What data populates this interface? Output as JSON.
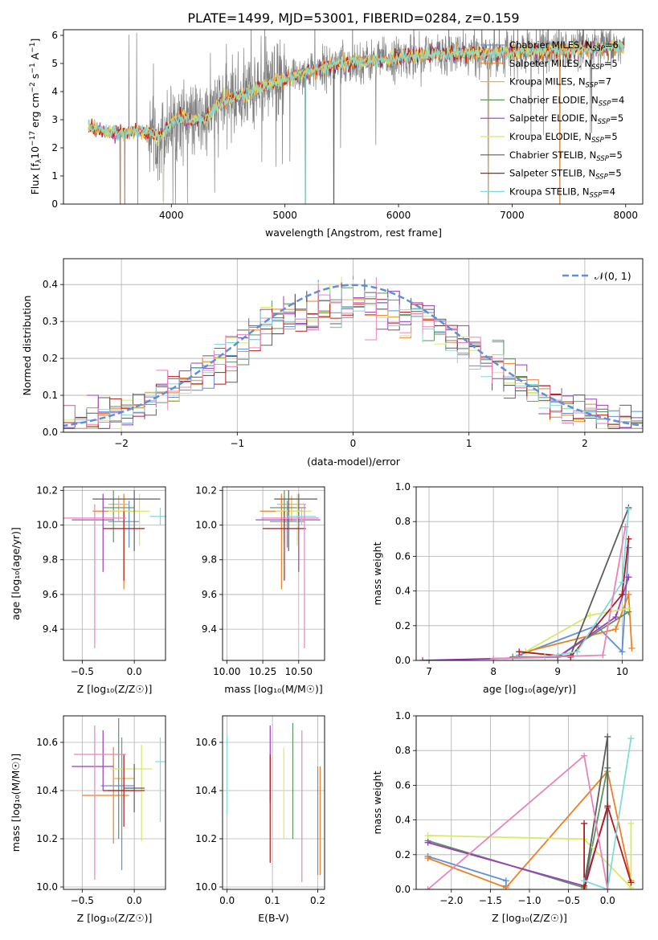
{
  "title": "PLATE=1499, MJD=53001, FIBERID=0284, z=0.159",
  "colors": [
    "#5f8fd6",
    "#ef7f22",
    "#f2b03c",
    "#5c955c",
    "#9a3dbd",
    "#d8e86a",
    "#5d5d5d",
    "#b01c1c",
    "#82dada",
    "#e984b9",
    "#6d4c8f",
    "#c0c0c0"
  ],
  "legend": {
    "spectrum": [
      "Chabrier MILES, N_SSP=6",
      "Salpeter MILES, N_SSP=5",
      "Kroupa MILES, N_SSP=7",
      "Chabrier ELODIE, N_SSP=4",
      "Salpeter ELODIE, N_SSP=5",
      "Kroupa ELODIE, N_SSP=5",
      "Chabrier STELIB, N_SSP=5",
      "Salpeter STELIB, N_SSP=5",
      "Kroupa STELIB, N_SSP=4"
    ],
    "residual": "𝒩(0, 1)"
  },
  "chart_data": [
    {
      "type": "line",
      "panel": "spectrum",
      "xlabel": "wavelength [Angstrom, rest frame]",
      "ylabel": "Flux [f_λ10^-17 erg cm^-2 s^-1 A^-1]",
      "xlim": [
        3050,
        8150
      ],
      "ylim": [
        0,
        6.2
      ],
      "xticks": [
        "4000",
        "5000",
        "6000",
        "7000",
        "8000"
      ],
      "yticks": [
        "0",
        "1",
        "2",
        "3",
        "4",
        "5",
        "6"
      ],
      "x_start": 3270,
      "x_end": 7990,
      "model_curve": {
        "x": [
          3270,
          3400,
          3500,
          3600,
          3700,
          3800,
          3900,
          4000,
          4100,
          4200,
          4300,
          4400,
          4500,
          4700,
          4900,
          5100,
          5300,
          5500,
          5800,
          6000,
          6200,
          6500,
          6800,
          7000,
          7300,
          7600,
          7990
        ],
        "y": [
          2.75,
          2.6,
          2.55,
          2.5,
          2.6,
          2.55,
          2.4,
          2.9,
          3.1,
          2.95,
          3.0,
          3.5,
          3.7,
          4.0,
          4.3,
          4.6,
          4.8,
          5.0,
          5.1,
          5.2,
          5.3,
          5.35,
          5.35,
          5.4,
          5.45,
          5.5,
          5.6
        ]
      },
      "absorption_dips": [
        {
          "x": 3550,
          "y": 0
        },
        {
          "x": 3590,
          "y": 0
        },
        {
          "x": 3930,
          "y": 0.1
        },
        {
          "x": 5180,
          "y": 0
        },
        {
          "x": 5430,
          "y": 0
        },
        {
          "x": 6790,
          "y": 0
        },
        {
          "x": 7420,
          "y": 0
        }
      ]
    },
    {
      "type": "step",
      "panel": "residual",
      "xlabel": "(data-model)/error",
      "ylabel": "Normed distribution",
      "xlim": [
        -2.5,
        2.5
      ],
      "ylim": [
        0,
        0.47
      ],
      "xticks": [
        "−2",
        "−1",
        "0",
        "1",
        "2"
      ],
      "yticks": [
        "0.0",
        "0.1",
        "0.2",
        "0.3",
        "0.4"
      ],
      "bin_width": 0.1,
      "reference": {
        "type": "normal",
        "mean": 0,
        "sigma": 1,
        "style": "dashed"
      }
    },
    {
      "type": "scatter",
      "panel": "age-vs-Z",
      "xlabel": "Z [log10(Z/Z☉)]",
      "ylabel": "age [log10(age/yr)]",
      "xlim": [
        -0.68,
        0.3
      ],
      "ylim": [
        9.22,
        10.22
      ],
      "xticks": [
        "−0.5",
        "0.0"
      ],
      "yticks": [
        "9.4",
        "9.6",
        "9.8",
        "10.0",
        "10.2"
      ],
      "errorbars": [
        {
          "x": -0.05,
          "y": 10.02,
          "xerr": [
            0.2,
            0.1
          ],
          "yerr": [
            0.15,
            0.12
          ],
          "color": "#5f8fd6"
        },
        {
          "x": -0.1,
          "y": 10.08,
          "xerr": [
            0.3,
            0.15
          ],
          "yerr": [
            0.45,
            0.1
          ],
          "color": "#ef7f22"
        },
        {
          "x": -0.15,
          "y": 10.12,
          "xerr": [
            0.1,
            0.1
          ],
          "yerr": [
            0.1,
            0.05
          ],
          "color": "#f2b03c"
        },
        {
          "x": -0.2,
          "y": 10.1,
          "xerr": [
            0.1,
            0.2
          ],
          "yerr": [
            0.2,
            0.1
          ],
          "color": "#5c955c"
        },
        {
          "x": -0.3,
          "y": 10.03,
          "xerr": [
            0.3,
            0.1
          ],
          "yerr": [
            0.3,
            0.15
          ],
          "color": "#9a3dbd"
        },
        {
          "x": 0.05,
          "y": 10.08,
          "xerr": [
            0.3,
            0.1
          ],
          "yerr": [
            0.2,
            0.1
          ],
          "color": "#d8e86a"
        },
        {
          "x": 0.0,
          "y": 10.15,
          "xerr": [
            0.4,
            0.25
          ],
          "yerr": [
            0.3,
            0.05
          ],
          "color": "#5d5d5d"
        },
        {
          "x": -0.1,
          "y": 9.98,
          "xerr": [
            0.2,
            0.2
          ],
          "yerr": [
            0.3,
            0.1
          ],
          "color": "#b01c1c"
        },
        {
          "x": 0.25,
          "y": 10.05,
          "xerr": [
            0.1,
            0.05
          ],
          "yerr": [
            0.05,
            0.05
          ],
          "color": "#82dada"
        },
        {
          "x": -0.38,
          "y": 10.04,
          "xerr": [
            0.3,
            0.3
          ],
          "yerr": [
            0.75,
            0.08
          ],
          "color": "#e984b9"
        }
      ]
    },
    {
      "type": "scatter",
      "panel": "age-vs-mass",
      "xlabel": "mass [log10(M/M☉)]",
      "ylabel": "",
      "xlim": [
        9.97,
        10.68
      ],
      "ylim": [
        9.22,
        10.22
      ],
      "xticks": [
        "10.00",
        "10.25",
        "10.50"
      ],
      "yticks": [
        "9.4",
        "9.6",
        "9.8",
        "10.0",
        "10.2"
      ],
      "errorbars": [
        {
          "x": 10.42,
          "y": 10.02,
          "xerr": [
            0.12,
            0.12
          ],
          "yerr": [
            0.15,
            0.12
          ],
          "color": "#5f8fd6"
        },
        {
          "x": 10.38,
          "y": 10.08,
          "xerr": [
            0.15,
            0.15
          ],
          "yerr": [
            0.45,
            0.1
          ],
          "color": "#ef7f22"
        },
        {
          "x": 10.45,
          "y": 10.12,
          "xerr": [
            0.1,
            0.1
          ],
          "yerr": [
            0.1,
            0.05
          ],
          "color": "#f2b03c"
        },
        {
          "x": 10.4,
          "y": 10.1,
          "xerr": [
            0.1,
            0.15
          ],
          "yerr": [
            0.2,
            0.1
          ],
          "color": "#5c955c"
        },
        {
          "x": 10.5,
          "y": 10.03,
          "xerr": [
            0.3,
            0.15
          ],
          "yerr": [
            0.3,
            0.15
          ],
          "color": "#9a3dbd"
        },
        {
          "x": 10.49,
          "y": 10.08,
          "xerr": [
            0.15,
            0.1
          ],
          "yerr": [
            0.2,
            0.1
          ],
          "color": "#d8e86a"
        },
        {
          "x": 10.43,
          "y": 10.15,
          "xerr": [
            0.1,
            0.2
          ],
          "yerr": [
            0.3,
            0.05
          ],
          "color": "#5d5d5d"
        },
        {
          "x": 10.4,
          "y": 9.98,
          "xerr": [
            0.15,
            0.15
          ],
          "yerr": [
            0.3,
            0.1
          ],
          "color": "#b01c1c"
        },
        {
          "x": 10.52,
          "y": 10.05,
          "xerr": [
            0.1,
            0.1
          ],
          "yerr": [
            0.05,
            0.05
          ],
          "color": "#82dada"
        },
        {
          "x": 10.54,
          "y": 10.04,
          "xerr": [
            0.3,
            0.1
          ],
          "yerr": [
            0.75,
            0.08
          ],
          "color": "#e984b9"
        }
      ]
    },
    {
      "type": "line",
      "panel": "mass-weight-vs-age",
      "xlabel": "age [log10(age/yr)]",
      "ylabel": "mass weight",
      "xlim": [
        6.8,
        10.32
      ],
      "ylim": [
        0,
        1.0
      ],
      "xticks": [
        "7",
        "8",
        "9",
        "10"
      ],
      "yticks": [
        "0.0",
        "0.2",
        "0.4",
        "0.6",
        "0.8",
        "1.0"
      ],
      "series": [
        {
          "color": "#5f8fd6",
          "x": [
            8.4,
            9.6,
            10.0,
            10.1
          ],
          "y": [
            0.03,
            0.2,
            0.05,
            0.65
          ]
        },
        {
          "color": "#ef7f22",
          "x": [
            8.5,
            9.9,
            10.1,
            10.15
          ],
          "y": [
            0.05,
            0.18,
            0.38,
            0.07
          ]
        },
        {
          "color": "#5c955c",
          "x": [
            8.3,
            9.0,
            10.1
          ],
          "y": [
            0.02,
            0.02,
            0.28
          ]
        },
        {
          "color": "#9a3dbd",
          "x": [
            6.9,
            9.0,
            9.9,
            10.1
          ],
          "y": [
            0.0,
            0.02,
            0.25,
            0.48
          ]
        },
        {
          "color": "#d8e86a",
          "x": [
            8.5,
            9.5,
            10.1
          ],
          "y": [
            0.05,
            0.26,
            0.3
          ]
        },
        {
          "color": "#5d5d5d",
          "x": [
            9.0,
            9.2,
            10.1
          ],
          "y": [
            0.02,
            0.03,
            0.88
          ]
        },
        {
          "color": "#b01c1c",
          "x": [
            8.4,
            9.2,
            10.0,
            10.1
          ],
          "y": [
            0.05,
            0.02,
            0.38,
            0.7
          ]
        },
        {
          "color": "#82dada",
          "x": [
            8.8,
            9.3,
            10.0,
            10.1
          ],
          "y": [
            0.02,
            0.05,
            0.45,
            0.87
          ]
        },
        {
          "color": "#e984b9",
          "x": [
            8.0,
            9.7,
            10.05
          ],
          "y": [
            0.01,
            0.03,
            0.77
          ]
        }
      ]
    },
    {
      "type": "scatter",
      "panel": "mass-vs-Z",
      "xlabel": "Z [log10(Z/Z☉)]",
      "ylabel": "mass [log10(M/M☉)]",
      "xlim": [
        -0.68,
        0.3
      ],
      "ylim": [
        9.99,
        10.71
      ],
      "xticks": [
        "−0.5",
        "0.0"
      ],
      "yticks": [
        "10.0",
        "10.2",
        "10.4",
        "10.6"
      ],
      "errorbars": [
        {
          "x": -0.12,
          "y": 10.42,
          "xerr": [
            0.2,
            0.12
          ],
          "yerr": [
            0.35,
            0.2
          ],
          "color": "#5f8fd6"
        },
        {
          "x": -0.2,
          "y": 10.38,
          "xerr": [
            0.3,
            0.15
          ],
          "yerr": [
            0.2,
            0.2
          ],
          "color": "#ef7f22"
        },
        {
          "x": -0.1,
          "y": 10.45,
          "xerr": [
            0.1,
            0.1
          ],
          "yerr": [
            0.1,
            0.1
          ],
          "color": "#f2b03c"
        },
        {
          "x": -0.15,
          "y": 10.4,
          "xerr": [
            0.1,
            0.15
          ],
          "yerr": [
            0.2,
            0.3
          ],
          "color": "#5c955c"
        },
        {
          "x": -0.3,
          "y": 10.5,
          "xerr": [
            0.3,
            0.1
          ],
          "yerr": [
            0.1,
            0.15
          ],
          "color": "#9a3dbd"
        },
        {
          "x": 0.07,
          "y": 10.49,
          "xerr": [
            0.3,
            0.1
          ],
          "yerr": [
            0.3,
            0.1
          ],
          "color": "#d8e86a"
        },
        {
          "x": 0.0,
          "y": 10.41,
          "xerr": [
            0.1,
            0.1
          ],
          "yerr": [
            0.1,
            0.1
          ],
          "color": "#5d5d5d"
        },
        {
          "x": -0.1,
          "y": 10.4,
          "xerr": [
            0.2,
            0.2
          ],
          "yerr": [
            0.15,
            0.15
          ],
          "color": "#b01c1c"
        },
        {
          "x": 0.25,
          "y": 10.52,
          "xerr": [
            0.05,
            0.05
          ],
          "yerr": [
            0.25,
            0.1
          ],
          "color": "#82dada"
        },
        {
          "x": -0.38,
          "y": 10.55,
          "xerr": [
            0.2,
            0.3
          ],
          "yerr": [
            0.52,
            0.12
          ],
          "color": "#e984b9"
        }
      ]
    },
    {
      "type": "scatter",
      "panel": "mass-vs-EBV",
      "xlabel": "E(B-V)",
      "ylabel": "",
      "xlim": [
        -0.01,
        0.215
      ],
      "ylim": [
        9.99,
        10.71
      ],
      "xticks": [
        "0.0",
        "0.1",
        "0.2"
      ],
      "yticks": [
        "10.0",
        "10.2",
        "10.4",
        "10.6"
      ],
      "errorbars": [
        {
          "x": 0.2,
          "y": 10.2,
          "yerr": [
            0.15,
            0.3
          ],
          "color": "#5f8fd6"
        },
        {
          "x": 0.205,
          "y": 10.3,
          "yerr": [
            0.25,
            0.2
          ],
          "color": "#ef7f22"
        },
        {
          "x": 0.145,
          "y": 10.4,
          "yerr": [
            0.2,
            0.28
          ],
          "color": "#5c955c"
        },
        {
          "x": 0.095,
          "y": 10.5,
          "yerr": [
            0.15,
            0.17
          ],
          "color": "#9a3dbd"
        },
        {
          "x": 0.125,
          "y": 10.4,
          "yerr": [
            0.2,
            0.18
          ],
          "color": "#d8e86a"
        },
        {
          "x": 0.095,
          "y": 10.35,
          "yerr": [
            0.25,
            0.2
          ],
          "color": "#b01c1c"
        },
        {
          "x": 0.0,
          "y": 10.45,
          "yerr": [
            0.15,
            0.18
          ],
          "color": "#82dada"
        },
        {
          "x": 0.165,
          "y": 10.35,
          "yerr": [
            0.33,
            0.3
          ],
          "color": "#e984b9"
        }
      ]
    },
    {
      "type": "line",
      "panel": "mass-weight-vs-Z",
      "xlabel": "Z [log10(Z/Z☉)]",
      "ylabel": "mass weight",
      "xlim": [
        -2.45,
        0.45
      ],
      "ylim": [
        0,
        1.0
      ],
      "xticks": [
        "−2.0",
        "−1.5",
        "−1.0",
        "−0.5",
        "0.0"
      ],
      "yticks": [
        "0.0",
        "0.2",
        "0.4",
        "0.6",
        "0.8",
        "1.0"
      ],
      "series": [
        {
          "color": "#5f8fd6",
          "x": [
            -2.3,
            -1.3,
            -1.3
          ],
          "y": [
            0.19,
            0.05,
            0.02
          ]
        },
        {
          "color": "#ef7f22",
          "x": [
            -2.3,
            -1.3,
            0.0,
            0.3
          ],
          "y": [
            0.18,
            0.01,
            0.68,
            0.05
          ]
        },
        {
          "color": "#5c955c",
          "x": [
            -2.3,
            -0.3,
            0.0
          ],
          "y": [
            0.28,
            0.01,
            0.7
          ]
        },
        {
          "color": "#9a3dbd",
          "x": [
            -2.3,
            -0.3,
            0.0
          ],
          "y": [
            0.27,
            0.02,
            0.47
          ]
        },
        {
          "color": "#d8e86a",
          "x": [
            -2.3,
            -0.3,
            0.3,
            0.3
          ],
          "y": [
            0.31,
            0.29,
            0.01,
            0.38
          ]
        },
        {
          "color": "#5d5d5d",
          "x": [
            -0.3,
            0.0,
            0.0
          ],
          "y": [
            0.02,
            0.88,
            0.0
          ]
        },
        {
          "color": "#b01c1c",
          "x": [
            -0.3,
            -0.3,
            0.0,
            0.3
          ],
          "y": [
            0.38,
            0.0,
            0.48,
            0.04
          ]
        },
        {
          "color": "#82dada",
          "x": [
            -0.3,
            0.0,
            0.3
          ],
          "y": [
            0.05,
            0.0,
            0.87
          ]
        },
        {
          "color": "#e984b9",
          "x": [
            -2.3,
            -0.3,
            0.0
          ],
          "y": [
            0.0,
            0.77,
            0.0
          ]
        }
      ]
    }
  ]
}
